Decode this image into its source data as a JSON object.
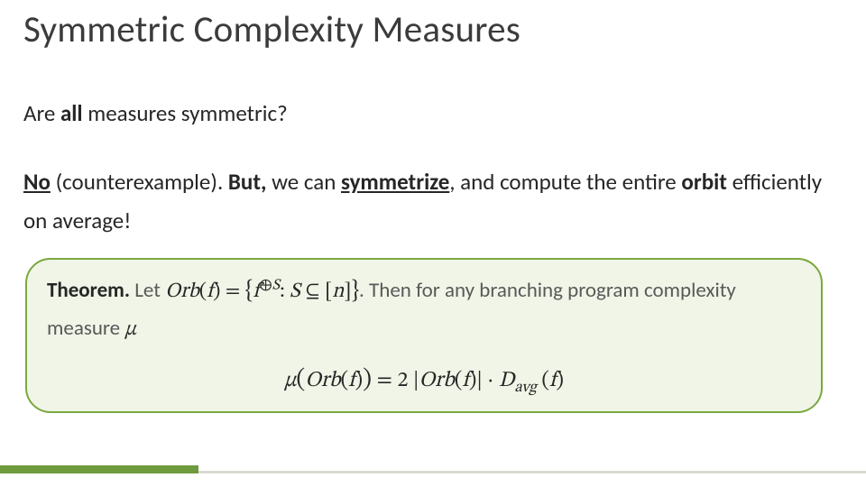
{
  "title": "Symmetric Complexity Measures",
  "body": {
    "line1_pre": "Are ",
    "line1_bold": "all",
    "line1_post": " measures symmetric?",
    "line2_no": "No",
    "line2_a": " (counterexample). ",
    "line2_but": "But,",
    "line2_b": " we can ",
    "line2_sym": "symmetrize",
    "line2_c": ", and compute the entire ",
    "line2_orbit": "orbit",
    "line2_d": " efficiently on average!"
  },
  "theorem": {
    "label": "Theorem.",
    "t1": " Let ",
    "orb": "Orb",
    "f": "f",
    "S": "S",
    "n": "n",
    "t2": ". Then for any branching program complexity measure ",
    "mu": "μ",
    "davg": "D",
    "davg_sub": "avg"
  },
  "colors": {
    "box_fill": "#f0f5e7",
    "box_border": "#7ba73f",
    "footer_accent": "#6f9a3e",
    "footer_track": "#dadad3",
    "title_color": "#3b3b3b",
    "text_color": "#262626",
    "theorem_text": "#595959",
    "background": "#ffffff"
  }
}
